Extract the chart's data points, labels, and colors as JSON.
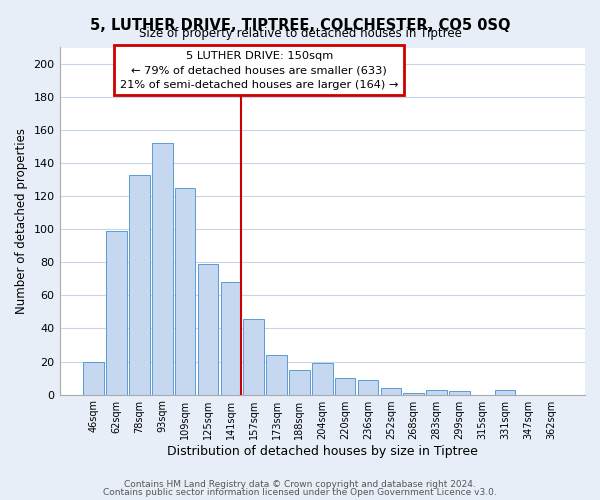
{
  "title": "5, LUTHER DRIVE, TIPTREE, COLCHESTER, CO5 0SQ",
  "subtitle": "Size of property relative to detached houses in Tiptree",
  "xlabel": "Distribution of detached houses by size in Tiptree",
  "ylabel": "Number of detached properties",
  "bar_labels": [
    "46sqm",
    "62sqm",
    "78sqm",
    "93sqm",
    "109sqm",
    "125sqm",
    "141sqm",
    "157sqm",
    "173sqm",
    "188sqm",
    "204sqm",
    "220sqm",
    "236sqm",
    "252sqm",
    "268sqm",
    "283sqm",
    "299sqm",
    "315sqm",
    "331sqm",
    "347sqm",
    "362sqm"
  ],
  "bar_values": [
    20,
    99,
    133,
    152,
    125,
    79,
    68,
    46,
    24,
    15,
    19,
    10,
    9,
    4,
    1,
    3,
    2,
    0,
    3,
    0,
    0
  ],
  "bar_color": "#c5d8f0",
  "bar_edge_color": "#5b9bd5",
  "ylim": [
    0,
    210
  ],
  "yticks": [
    0,
    20,
    40,
    60,
    80,
    100,
    120,
    140,
    160,
    180,
    200
  ],
  "annotation_title": "5 LUTHER DRIVE: 150sqm",
  "annotation_line1": "← 79% of detached houses are smaller (633)",
  "annotation_line2": "21% of semi-detached houses are larger (164) →",
  "annotation_box_color": "#ffffff",
  "annotation_box_edge": "#cc0000",
  "vline_x_index": 6,
  "footnote1": "Contains HM Land Registry data © Crown copyright and database right 2024.",
  "footnote2": "Contains public sector information licensed under the Open Government Licence v3.0.",
  "background_color": "#e8eef8",
  "plot_bg_color": "#ffffff",
  "grid_color": "#c8d4e8"
}
